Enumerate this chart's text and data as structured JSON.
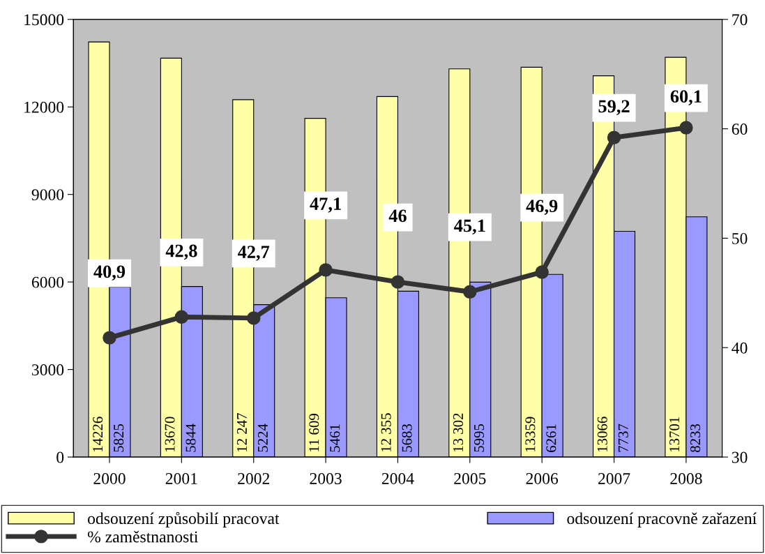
{
  "chart_data": {
    "type": "bar",
    "categories": [
      "2000",
      "2001",
      "2002",
      "2003",
      "2004",
      "2005",
      "2006",
      "2007",
      "2008"
    ],
    "series": [
      {
        "name": "odsouzení způsobilí pracovat",
        "color": "#ffffa8",
        "values": [
          14226,
          13670,
          12247,
          11609,
          12355,
          13302,
          13359,
          13066,
          13701
        ],
        "value_labels": [
          "14226",
          "13670",
          "12 247",
          "11 609",
          "12 355",
          "13 302",
          "13359",
          "13066",
          "13701"
        ]
      },
      {
        "name": "odsouzení pracovně zařazení",
        "color": "#9999ff",
        "values": [
          5825,
          5844,
          5224,
          5461,
          5683,
          5995,
          6261,
          7737,
          8233
        ],
        "value_labels": [
          "5825",
          "5844",
          "5224",
          "5461",
          "5683",
          "5995",
          "6261",
          "7737",
          "8233"
        ]
      },
      {
        "name": "% zaměstnanosti",
        "type": "line",
        "axis": "y2",
        "color": "#333333",
        "marker": "circle",
        "values": [
          40.9,
          42.8,
          42.7,
          47.1,
          46,
          45.1,
          46.9,
          59.2,
          60.1
        ],
        "value_labels": [
          "40,9",
          "42,8",
          "42,7",
          "47,1",
          "46",
          "45,1",
          "46,9",
          "59,2",
          "60,1"
        ]
      }
    ],
    "ylim": [
      0,
      15000
    ],
    "yticks": [
      0,
      3000,
      6000,
      9000,
      12000,
      15000
    ],
    "y2lim": [
      30,
      70
    ],
    "y2ticks": [
      30,
      40,
      50,
      60,
      70
    ],
    "grid": false,
    "legend": "bottom"
  }
}
